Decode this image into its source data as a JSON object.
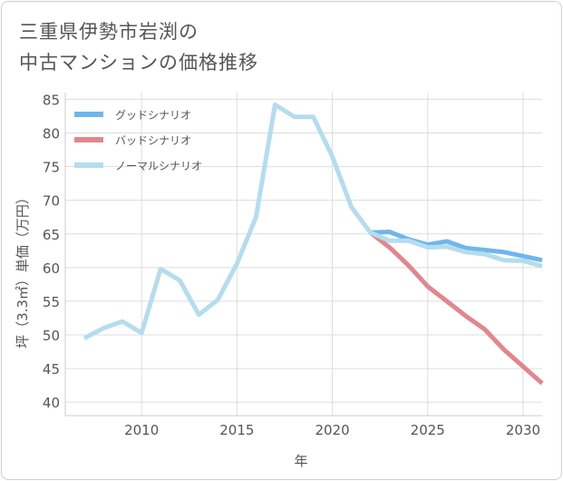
{
  "title_lines": [
    "三重県伊勢市岩渕の",
    "中古マンションの価格推移"
  ],
  "chart_data": {
    "type": "line",
    "title": "三重県伊勢市岩渕の中古マンションの価格推移",
    "xlabel": "年",
    "ylabel": "坪（3.3㎡）単価（万円）",
    "xlim": [
      2006,
      2031
    ],
    "ylim": [
      38,
      86
    ],
    "xticks": [
      2010,
      2015,
      2020,
      2025,
      2030
    ],
    "yticks": [
      40,
      45,
      50,
      55,
      60,
      65,
      70,
      75,
      80,
      85
    ],
    "grid": true,
    "legend_position": "top-left",
    "series": [
      {
        "name": "グッドシナリオ",
        "color": "#6fb6ea",
        "x": [
          2022,
          2023,
          2024,
          2025,
          2026,
          2027,
          2028,
          2029,
          2030,
          2031
        ],
        "y": [
          65.2,
          65.3,
          64.2,
          63.4,
          63.9,
          62.9,
          62.6,
          62.3,
          61.7,
          61.1
        ]
      },
      {
        "name": "バッドシナリオ",
        "color": "#e0878e",
        "x": [
          2022,
          2023,
          2024,
          2025,
          2026,
          2027,
          2028,
          2029,
          2030,
          2031
        ],
        "y": [
          65.2,
          63.0,
          60.3,
          57.2,
          55.0,
          52.8,
          50.8,
          47.8,
          45.3,
          42.8
        ]
      },
      {
        "name": "ノーマルシナリオ",
        "color": "#b5dcee",
        "x": [
          2007,
          2008,
          2009,
          2010,
          2011,
          2012,
          2013,
          2014,
          2015,
          2016,
          2017,
          2018,
          2019,
          2020,
          2021,
          2022,
          2023,
          2024,
          2025,
          2026,
          2027,
          2028,
          2029,
          2030,
          2031
        ],
        "y": [
          49.5,
          51.0,
          52.0,
          50.3,
          59.8,
          58.1,
          53.0,
          55.2,
          60.6,
          67.5,
          84.2,
          82.4,
          82.4,
          76.5,
          69.0,
          65.2,
          64.0,
          64.0,
          63.0,
          63.1,
          62.3,
          62.0,
          61.1,
          61.0,
          60.2
        ]
      }
    ]
  }
}
